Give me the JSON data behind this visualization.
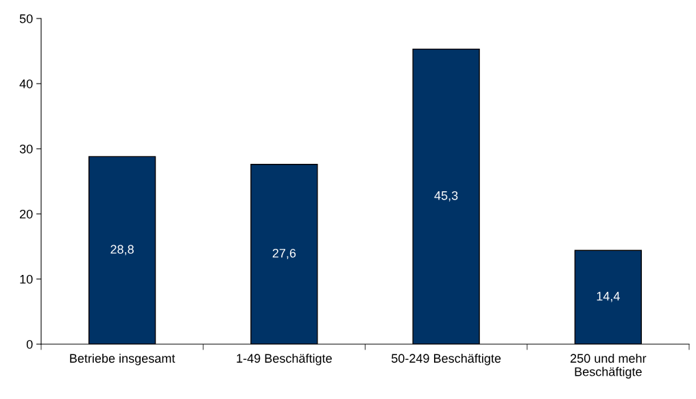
{
  "chart_data": {
    "type": "bar",
    "categories": [
      "Betriebe insgesamt",
      "1-49 Beschäftigte",
      "50-249 Beschäftigte",
      "250 und mehr\nBeschäftigte"
    ],
    "values": [
      28.8,
      27.6,
      45.3,
      14.4
    ],
    "value_labels": [
      "28,8",
      "27,6",
      "45,3",
      "14,4"
    ],
    "color": "#003366",
    "ylim": [
      0,
      50
    ],
    "yticks": [
      0,
      10,
      20,
      30,
      40,
      50
    ],
    "grid": false,
    "legend": false
  }
}
